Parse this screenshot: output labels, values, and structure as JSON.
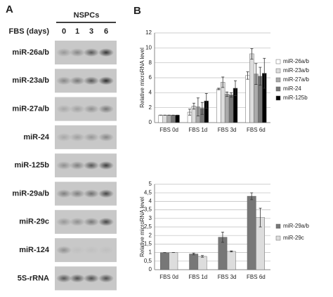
{
  "blot": {
    "panel": "A",
    "group": "NSPCs",
    "condition": "FBS (days)",
    "timepoints": [
      "0",
      "1",
      "3",
      "6"
    ],
    "rows": [
      "miR-26a/b",
      "miR-23a/b",
      "miR-27a/b",
      "miR-24",
      "miR-125b",
      "miR-29a/b",
      "miR-29c",
      "miR-124",
      "5S-rRNA"
    ]
  },
  "panel_b": "B",
  "chart_data": [
    {
      "type": "bar",
      "y_label": "Relative microRNA level",
      "categories": [
        "FBS 0d",
        "FBS 1d",
        "FBS 3d",
        "FBS 6d"
      ],
      "ylim": [
        0,
        12
      ],
      "yticks": [
        0,
        2,
        4,
        6,
        8,
        10,
        12
      ],
      "grid": true,
      "series": [
        {
          "name": "miR-26a/b",
          "color": "#ffffff",
          "values": [
            1,
            1.4,
            4.5,
            6.3
          ],
          "errors": [
            0,
            0.4,
            0.1,
            0.5
          ]
        },
        {
          "name": "miR-23a/b",
          "color": "#dddddd",
          "values": [
            1,
            2.2,
            5.4,
            9.2
          ],
          "errors": [
            0,
            0.4,
            0.7,
            0.7
          ]
        },
        {
          "name": "miR-27a/b",
          "color": "#aaaaaa",
          "values": [
            1,
            2.1,
            3.8,
            6.5
          ],
          "errors": [
            0,
            1.2,
            0.3,
            1.4
          ]
        },
        {
          "name": "miR-24",
          "color": "#777777",
          "values": [
            1,
            1.9,
            3.7,
            6.2
          ],
          "errors": [
            0,
            0.8,
            0.3,
            1.2
          ]
        },
        {
          "name": "miR-125b",
          "color": "#000000",
          "values": [
            1,
            2.9,
            4.6,
            6.6
          ],
          "errors": [
            0,
            1.0,
            1.0,
            2.0
          ]
        }
      ]
    },
    {
      "type": "bar",
      "y_label": "Relative microRNA level",
      "categories": [
        "FBS 0d",
        "FBS 1d",
        "FBS 3d",
        "FBS 6d"
      ],
      "ylim": [
        0,
        5
      ],
      "yticks": [
        0,
        {
          "value": 0.5,
          "label": "0,5"
        },
        1,
        {
          "value": 1.5,
          "label": "1,5"
        },
        2,
        {
          "value": 2.5,
          "label": "2,5"
        },
        3,
        {
          "value": 3.5,
          "label": "3,5"
        },
        4,
        {
          "value": 4.5,
          "label": "4,5"
        },
        5
      ],
      "grid": true,
      "series": [
        {
          "name": "miR-29a/b",
          "color": "#777777",
          "values": [
            1,
            0.92,
            1.9,
            4.3
          ],
          "errors": [
            0,
            0.05,
            0.3,
            0.2
          ]
        },
        {
          "name": "miR-29c",
          "color": "#dddddd",
          "values": [
            1,
            0.78,
            1.07,
            3.05
          ],
          "errors": [
            0,
            0.05,
            0.03,
            0.55
          ]
        }
      ]
    }
  ]
}
